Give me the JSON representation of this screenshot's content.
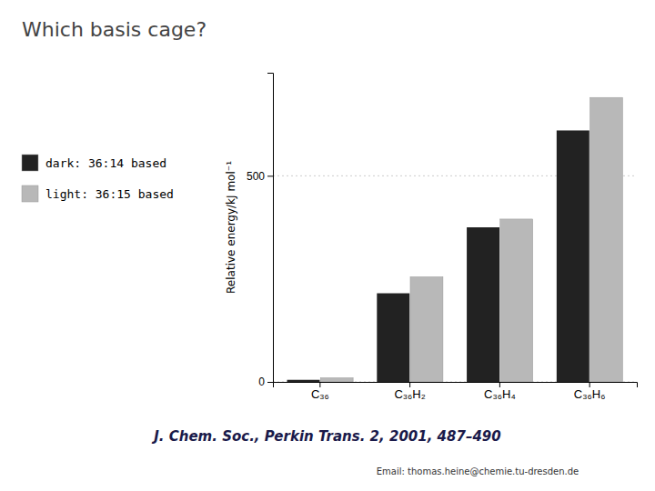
{
  "chart_data": {
    "type": "bar",
    "title": "Which basis cage?",
    "ylabel": "Relative energy/kJ mol⁻¹",
    "categories": [
      "C₃₆",
      "C₃₆H₂",
      "C₃₆H₄",
      "C₃₆H₆"
    ],
    "series": [
      {
        "name": "dark: 36:14 based",
        "color": "#222222",
        "values": [
          5,
          215,
          375,
          610
        ]
      },
      {
        "name": "light: 36:15 based",
        "color": "#b8b8b8",
        "values": [
          10,
          255,
          395,
          690
        ]
      }
    ],
    "ylim": [
      0,
      750
    ],
    "yticks": [
      0,
      500
    ],
    "grid": true,
    "legend": "left",
    "annotations": [
      "J. Chem. Soc., Perkin Trans. 2, 2001, 487–490",
      "Email: thomas.heine@chemie.tu-dresden.de"
    ]
  }
}
